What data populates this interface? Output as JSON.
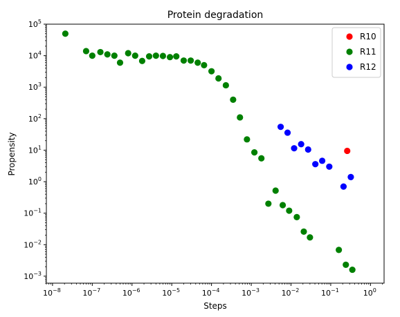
{
  "chart_data": {
    "type": "scatter",
    "title": "Protein degradation",
    "xlabel": "Steps",
    "ylabel": "Propensity",
    "xscale": "log",
    "yscale": "log",
    "xlim": [
      7e-09,
      2.2
    ],
    "ylim": [
      0.0006,
      100000
    ],
    "xticks": [
      {
        "value": 1e-08,
        "base": "10",
        "exp": "−8"
      },
      {
        "value": 1e-07,
        "base": "10",
        "exp": "−7"
      },
      {
        "value": 1e-06,
        "base": "10",
        "exp": "−6"
      },
      {
        "value": 1e-05,
        "base": "10",
        "exp": "−5"
      },
      {
        "value": 0.0001,
        "base": "10",
        "exp": "−4"
      },
      {
        "value": 0.001,
        "base": "10",
        "exp": "−3"
      },
      {
        "value": 0.01,
        "base": "10",
        "exp": "−2"
      },
      {
        "value": 0.1,
        "base": "10",
        "exp": "−1"
      },
      {
        "value": 1,
        "base": "10",
        "exp": "0"
      }
    ],
    "yticks": [
      {
        "value": 0.001,
        "base": "10",
        "exp": "−3"
      },
      {
        "value": 0.01,
        "base": "10",
        "exp": "−2"
      },
      {
        "value": 0.1,
        "base": "10",
        "exp": "−1"
      },
      {
        "value": 1,
        "base": "10",
        "exp": "0"
      },
      {
        "value": 10,
        "base": "10",
        "exp": "1"
      },
      {
        "value": 100,
        "base": "10",
        "exp": "2"
      },
      {
        "value": 1000,
        "base": "10",
        "exp": "3"
      },
      {
        "value": 10000,
        "base": "10",
        "exp": "4"
      },
      {
        "value": 100000,
        "base": "10",
        "exp": "5"
      }
    ],
    "grid": false,
    "legend": "top-right",
    "series": [
      {
        "name": "R10",
        "color": "#ff0000",
        "points": [
          [
            0.26,
            9.5
          ]
        ]
      },
      {
        "name": "R11",
        "color": "#008000",
        "points": [
          [
            2.1e-08,
            50000
          ],
          [
            7e-08,
            14000
          ],
          [
            1e-07,
            10000
          ],
          [
            1.6e-07,
            13000
          ],
          [
            2.4e-07,
            11000
          ],
          [
            3.6e-07,
            10000
          ],
          [
            5e-07,
            6000
          ],
          [
            8e-07,
            12000
          ],
          [
            1.2e-06,
            10000
          ],
          [
            1.8e-06,
            6800
          ],
          [
            2.7e-06,
            9500
          ],
          [
            4e-06,
            10000
          ],
          [
            6e-06,
            9800
          ],
          [
            9e-06,
            9000
          ],
          [
            1.3e-05,
            9500
          ],
          [
            2e-05,
            7000
          ],
          [
            3e-05,
            7000
          ],
          [
            4.5e-05,
            6000
          ],
          [
            6.5e-05,
            5000
          ],
          [
            0.0001,
            3200
          ],
          [
            0.00015,
            1900
          ],
          [
            0.00023,
            1150
          ],
          [
            0.00035,
            400
          ],
          [
            0.00052,
            110
          ],
          [
            0.00078,
            22
          ],
          [
            0.0012,
            8.5
          ],
          [
            0.0018,
            5.5
          ],
          [
            0.0027,
            0.2
          ],
          [
            0.0041,
            0.52
          ],
          [
            0.0062,
            0.18
          ],
          [
            0.009,
            0.12
          ],
          [
            0.014,
            0.075
          ],
          [
            0.021,
            0.026
          ],
          [
            0.03,
            0.017
          ],
          [
            0.16,
            0.0068
          ],
          [
            0.24,
            0.0023
          ],
          [
            0.35,
            0.0016
          ]
        ]
      },
      {
        "name": "R12",
        "color": "#0000ff",
        "points": [
          [
            0.0055,
            55
          ],
          [
            0.0082,
            36
          ],
          [
            0.012,
            11.5
          ],
          [
            0.018,
            15.5
          ],
          [
            0.027,
            10.5
          ],
          [
            0.041,
            3.6
          ],
          [
            0.061,
            4.6
          ],
          [
            0.092,
            3.0
          ],
          [
            0.21,
            0.7
          ],
          [
            0.32,
            1.4
          ]
        ]
      }
    ]
  }
}
